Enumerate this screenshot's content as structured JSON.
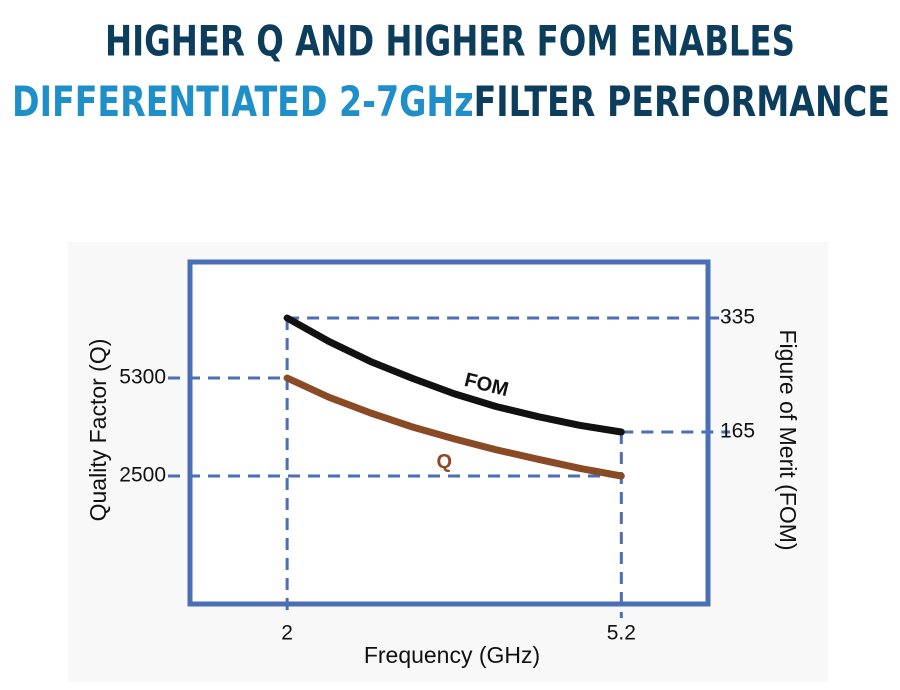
{
  "chart_data": {
    "type": "line",
    "title": {
      "line1": "HIGHER Q AND HIGHER FOM ENABLES",
      "line2_highlight": "DIFFERENTIATED 2-7GHz",
      "line2_rest": "FILTER PERFORMANCE"
    },
    "x_label": "Frequency (GHz)",
    "y_label": "Quality Factor (Q)",
    "y2_label": "Figure of Merit (FOM)",
    "x": [
      2,
      2.4,
      2.8,
      3.2,
      3.6,
      4.0,
      4.4,
      4.8,
      5.2
    ],
    "series": [
      {
        "name": "FOM",
        "color": "#111111",
        "axis": "y2",
        "values": [
          335,
          300,
          270,
          245,
          222,
          203,
          188,
          175,
          165
        ]
      },
      {
        "name": "Q",
        "color": "#8a4a26",
        "values": [
          5300,
          4750,
          4300,
          3900,
          3560,
          3250,
          2980,
          2720,
          2500
        ]
      }
    ],
    "xlim": [
      1.07,
      6.03
    ],
    "xticks": [
      2,
      5.2
    ],
    "ylim": [
      -1157,
      8614
    ],
    "yticks": [
      2500,
      5300
    ],
    "y2lim": [
      -91.5,
      418.5
    ],
    "y2ticks": [
      165,
      335
    ]
  }
}
